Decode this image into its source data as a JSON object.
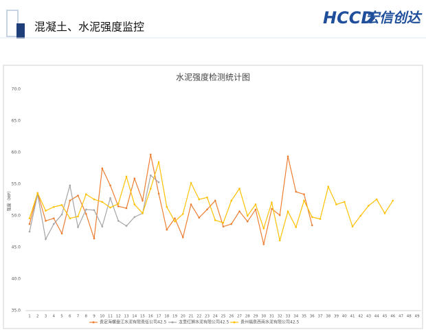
{
  "header": {
    "title": "混凝土、水泥强度监控",
    "logo": "HCCD",
    "logo_text": "宏信创达"
  },
  "chart_data": {
    "type": "line",
    "title": "水泥强度检测统计图",
    "y_label": "强度（MP）",
    "categories": [
      1,
      2,
      3,
      4,
      5,
      6,
      7,
      8,
      9,
      10,
      11,
      12,
      13,
      14,
      15,
      16,
      17,
      18,
      19,
      20,
      21,
      22,
      23,
      24,
      25,
      26,
      27,
      28,
      29,
      30,
      31,
      32,
      33,
      34,
      35,
      36,
      37,
      38,
      39,
      40,
      41,
      42,
      43,
      44,
      45,
      46,
      47,
      48,
      49
    ],
    "ylim": [
      35,
      70
    ],
    "yticks": [
      {
        "value": 35,
        "label": "35.0"
      },
      {
        "value": 40,
        "label": "40.0"
      },
      {
        "value": 45,
        "label": "45.0"
      },
      {
        "value": 50,
        "label": "50.0"
      },
      {
        "value": 55,
        "label": "55.0"
      },
      {
        "value": 60,
        "label": "60.0"
      },
      {
        "value": 65,
        "label": "65.0"
      },
      {
        "value": 70,
        "label": "70.0"
      }
    ],
    "grid": false,
    "series": [
      {
        "name": "贵定海螺盘江水泥有限责任公司42.5",
        "color": "#ed7d31",
        "values": [
          48.7,
          53.6,
          49.2,
          49.6,
          47.2,
          52.4,
          53.2,
          50.3,
          46.4,
          57.5,
          54.8,
          51.5,
          51.2,
          55.9,
          52.4,
          59.7,
          53.5,
          47.8,
          49.6,
          46.6,
          51.8,
          49.7,
          51.0,
          52.4,
          48.3,
          48.7,
          50.7,
          49.1,
          51.0,
          45.5,
          51.1,
          50.1,
          59.4,
          53.8,
          53.4,
          48.5,
          null,
          null,
          null,
          null,
          null,
          null,
          null,
          null,
          null,
          null,
          null,
          null,
          null
        ]
      },
      {
        "name": "龙里红狮水泥有限公司42.5",
        "color": "#a5a5a5",
        "values": [
          47.5,
          53.4,
          46.3,
          48.7,
          50.2,
          54.8,
          48.2,
          51.0,
          50.9,
          48.3,
          52.8,
          49.2,
          48.4,
          49.8,
          50.4,
          56.4,
          55.3,
          null,
          null,
          null,
          null,
          null,
          null,
          null,
          null,
          null,
          null,
          null,
          null,
          null,
          null,
          null,
          null,
          null,
          null,
          null,
          null,
          null,
          null,
          null,
          null,
          null,
          null,
          null,
          null,
          null,
          null,
          null,
          null
        ]
      },
      {
        "name": "贵州福泉西南水泥有限公司42.5",
        "color": "#ffc000",
        "values": [
          49.6,
          53.6,
          50.8,
          51.4,
          51.7,
          49.6,
          49.9,
          53.4,
          52.6,
          52.2,
          51.3,
          51.9,
          56.2,
          51.8,
          50.4,
          54.3,
          58.5,
          51.4,
          49.1,
          50.3,
          55.2,
          52.6,
          52.9,
          49.3,
          48.9,
          52.4,
          54.3,
          50.0,
          51.8,
          48.0,
          52.1,
          46.1,
          50.7,
          48.2,
          52.4,
          49.8,
          49.5,
          54.6,
          51.8,
          52.2,
          48.3,
          50.0,
          51.6,
          52.6,
          50.4,
          52.4,
          null,
          null,
          null
        ]
      }
    ]
  }
}
